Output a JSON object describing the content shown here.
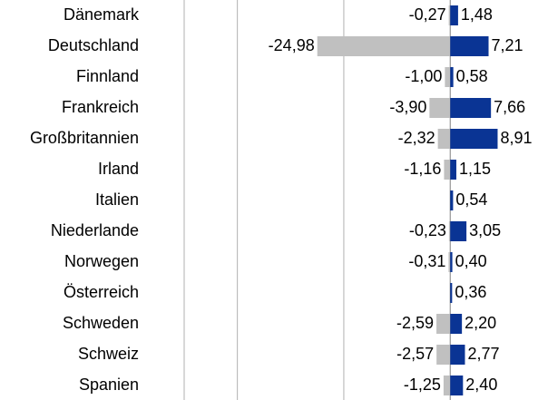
{
  "chart_data": {
    "type": "bar",
    "orientation": "horizontal",
    "categories": [
      "Dänemark",
      "Deutschland",
      "Finnland",
      "Frankreich",
      "Großbritannien",
      "Irland",
      "Italien",
      "Niederlande",
      "Norwegen",
      "Österreich",
      "Schweden",
      "Schweiz",
      "Spanien"
    ],
    "series": [
      {
        "color": "#c0c0c0",
        "values": [
          -0.27,
          -24.98,
          -1.0,
          -3.9,
          -2.32,
          -1.16,
          null,
          -0.23,
          -0.31,
          null,
          -2.59,
          -2.57,
          -1.25
        ],
        "value_labels": [
          "-0,27",
          "-24,98",
          "-1,00",
          "-3,90",
          "-2,32",
          "-1,16",
          null,
          "-0,23",
          "-0,31",
          null,
          "-2,59",
          "-2,57",
          "-1,25"
        ]
      },
      {
        "color": "#0a3494",
        "values": [
          1.48,
          7.21,
          0.58,
          7.66,
          8.91,
          1.15,
          0.54,
          3.05,
          0.4,
          0.36,
          2.2,
          2.77,
          2.4
        ],
        "value_labels": [
          "1,48",
          "7,21",
          "0,58",
          "7,66",
          "8,91",
          "1,15",
          "0,54",
          "3,05",
          "0,40",
          "0,36",
          "2,20",
          "2,77",
          "2,40"
        ]
      }
    ],
    "xlim": [
      -50,
      16.5
    ],
    "xticks": [
      -50,
      -40,
      -20,
      0
    ],
    "grid": true
  }
}
